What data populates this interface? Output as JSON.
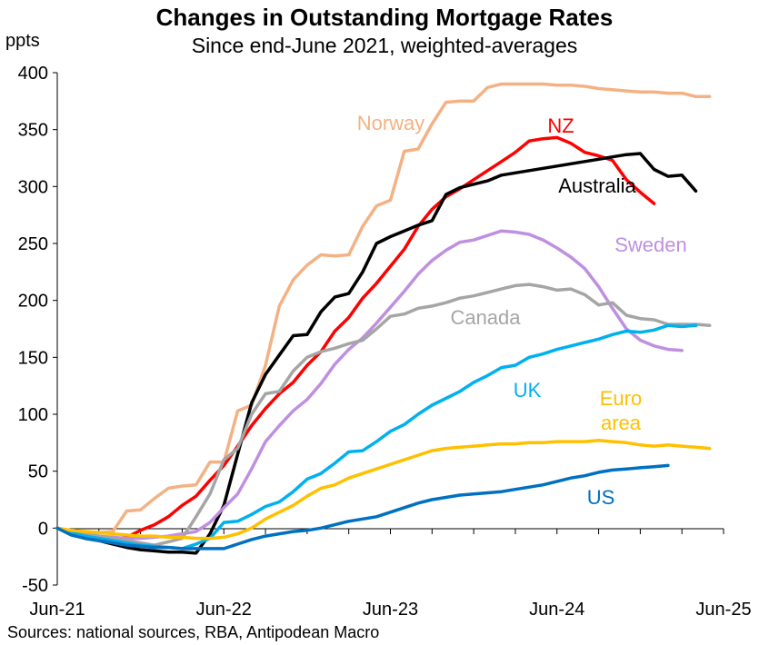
{
  "chart_data": {
    "type": "line",
    "title": "Changes in Outstanding Mortgage Rates",
    "subtitle": "Since end-June 2021, weighted-averages",
    "ylabel": "ppts",
    "xlabel": "",
    "source": "Sources: national sources, RBA, Antipodean Macro",
    "ylim": [
      -50,
      400
    ],
    "yticks": [
      "-50",
      "0",
      "50",
      "100",
      "150",
      "200",
      "250",
      "300",
      "350",
      "400"
    ],
    "x_range_months": [
      0,
      48
    ],
    "xticks": [
      {
        "label": "Jun-21",
        "month": 0
      },
      {
        "label": "Jun-22",
        "month": 12
      },
      {
        "label": "Jun-23",
        "month": 24
      },
      {
        "label": "Jun-24",
        "month": 36
      },
      {
        "label": "Jun-25",
        "month": 48
      }
    ],
    "series": [
      {
        "name": "Norway",
        "label": "Norway",
        "color": "#F4B183",
        "stroke": 3.5,
        "values": [
          0,
          -2,
          -3,
          -4,
          -3,
          15,
          16,
          26,
          35,
          37,
          38,
          58,
          58,
          103,
          108,
          143,
          195,
          218,
          231,
          240,
          239,
          240,
          265,
          283,
          288,
          331,
          333,
          355,
          374,
          375,
          375,
          387,
          390,
          390,
          390,
          390,
          389,
          389,
          388,
          386,
          385,
          384,
          383,
          383,
          382,
          382,
          379,
          379
        ]
      },
      {
        "name": "NZ",
        "label": "NZ",
        "color": "#FF0000",
        "stroke": 3.5,
        "values": [
          0,
          -5,
          -8,
          -11,
          -10,
          -8,
          -2,
          3,
          10,
          20,
          28,
          42,
          55,
          72,
          90,
          105,
          118,
          128,
          143,
          155,
          173,
          185,
          202,
          215,
          230,
          245,
          265,
          280,
          291,
          298,
          306,
          314,
          322,
          330,
          340,
          342,
          343,
          338,
          330,
          327,
          323,
          306,
          295,
          285
        ]
      },
      {
        "name": "Australia",
        "label": "Australia",
        "color": "#000000",
        "stroke": 3.5,
        "values": [
          0,
          -5,
          -9,
          -11,
          -14,
          -17,
          -19,
          -20,
          -21,
          -21,
          -22,
          -5,
          20,
          65,
          110,
          135,
          152,
          169,
          170,
          190,
          203,
          206,
          225,
          250,
          256,
          261,
          266,
          270,
          293,
          299,
          302,
          305,
          310,
          312,
          314,
          316,
          318,
          320,
          322,
          324,
          326,
          328,
          329,
          315,
          309,
          310,
          296
        ]
      },
      {
        "name": "Sweden",
        "label": "Sweden",
        "color": "#BF8FE0",
        "stroke": 3.5,
        "values": [
          0,
          -3,
          -5,
          -7,
          -8,
          -9,
          -9,
          -8,
          -7,
          -5,
          -3,
          5,
          18,
          30,
          52,
          76,
          90,
          103,
          113,
          127,
          144,
          157,
          167,
          180,
          194,
          208,
          223,
          235,
          244,
          251,
          253,
          257,
          261,
          260,
          258,
          253,
          246,
          238,
          228,
          212,
          193,
          175,
          165,
          160,
          157,
          156
        ]
      },
      {
        "name": "Canada",
        "label": "Canada",
        "color": "#A5A5A5",
        "stroke": 3.5,
        "values": [
          0,
          -3,
          -5,
          -7,
          -9,
          -11,
          -13,
          -15,
          -12,
          -9,
          10,
          30,
          60,
          70,
          100,
          118,
          120,
          138,
          150,
          155,
          158,
          162,
          165,
          175,
          186,
          188,
          193,
          195,
          198,
          202,
          204,
          207,
          210,
          213,
          214,
          212,
          209,
          210,
          205,
          196,
          198,
          187,
          184,
          183,
          179,
          179,
          179,
          178
        ]
      },
      {
        "name": "UK",
        "label": "UK",
        "color": "#00B0F0",
        "stroke": 3.5,
        "values": [
          0,
          -4,
          -7,
          -9,
          -11,
          -13,
          -15,
          -16,
          -17,
          -18,
          -14,
          -9,
          5,
          6,
          12,
          19,
          23,
          32,
          43,
          48,
          57,
          67,
          68,
          76,
          85,
          91,
          100,
          108,
          114,
          120,
          128,
          134,
          141,
          143,
          150,
          153,
          157,
          160,
          163,
          166,
          170,
          173,
          172,
          174,
          178,
          177,
          178
        ]
      },
      {
        "name": "Euro area",
        "label": "Euro\narea",
        "color": "#FFC000",
        "stroke": 3.5,
        "values": [
          0,
          -2,
          -3,
          -4,
          -5,
          -6,
          -7,
          -7,
          -8,
          -8,
          -9,
          -9,
          -8,
          -5,
          0,
          8,
          14,
          20,
          28,
          35,
          38,
          44,
          48,
          52,
          56,
          60,
          64,
          68,
          70,
          71,
          72,
          73,
          74,
          74,
          75,
          75,
          76,
          76,
          76,
          77,
          76,
          75,
          73,
          72,
          73,
          72,
          71,
          70
        ]
      },
      {
        "name": "US",
        "label": "US",
        "color": "#0070C0",
        "stroke": 3.5,
        "values": [
          0,
          -6,
          -9,
          -11,
          -13,
          -15,
          -16,
          -17,
          -17,
          -18,
          -18,
          -18,
          -18,
          -14,
          -10,
          -7,
          -5,
          -3,
          -2,
          0,
          3,
          6,
          8,
          10,
          14,
          18,
          22,
          25,
          27,
          29,
          30,
          31,
          32,
          34,
          36,
          38,
          41,
          44,
          46,
          49,
          51,
          52,
          53,
          54,
          55
        ]
      }
    ]
  }
}
